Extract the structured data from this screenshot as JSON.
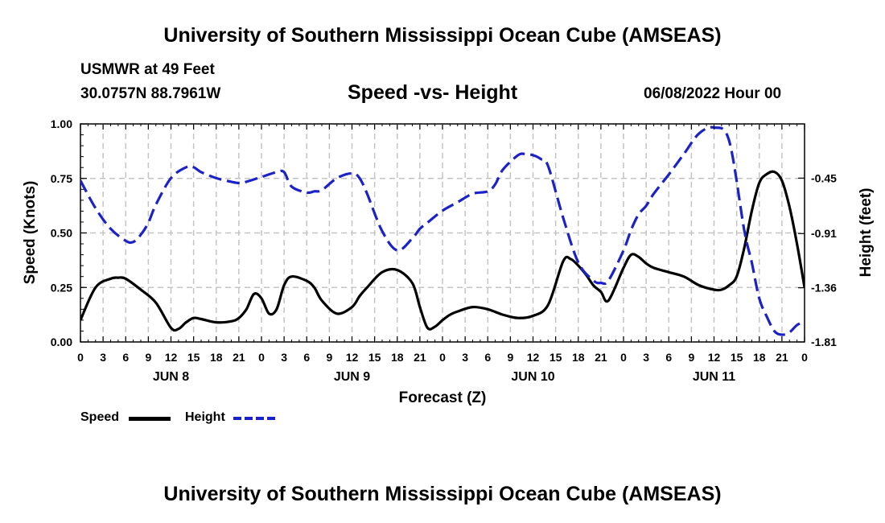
{
  "page": {
    "title": "University of Southern Mississippi Ocean Cube (AMSEAS)",
    "station_line": "USMWR at 49 Feet",
    "coords_line": "30.0757N  88.7961W",
    "chart_subtitle": "Speed -vs- Height",
    "date_line": "06/08/2022 Hour 00",
    "footer_title": "University of Southern Mississippi Ocean Cube (AMSEAS)"
  },
  "legend": {
    "speed_label": "Speed",
    "height_label": "Height"
  },
  "chart_data": {
    "type": "line",
    "title": "Speed -vs- Height",
    "xlabel": "Forecast (Z)",
    "ylabel": "Speed (Knots)",
    "y2label": "Height (feet)",
    "x_range_hours": [
      0,
      96
    ],
    "x_tick_step_hours": 3,
    "x_tick_labels": [
      "0",
      "3",
      "6",
      "9",
      "12",
      "15",
      "18",
      "21",
      "0",
      "3",
      "6",
      "9",
      "12",
      "15",
      "18",
      "21",
      "0",
      "3",
      "6",
      "9",
      "12",
      "15",
      "18",
      "21",
      "0",
      "3",
      "6",
      "9",
      "12",
      "15",
      "18",
      "21",
      "0"
    ],
    "day_labels": [
      {
        "label": "JUN 8",
        "hour": 12
      },
      {
        "label": "JUN 9",
        "hour": 36
      },
      {
        "label": "JUN 10",
        "hour": 60
      },
      {
        "label": "JUN 11",
        "hour": 84
      }
    ],
    "ylim": [
      0,
      1.0
    ],
    "y_ticks": [
      0,
      0.25,
      0.5,
      0.75,
      1.0
    ],
    "y_tick_labels": [
      "0.00",
      "0.25",
      "0.50",
      "0.75",
      "1.00"
    ],
    "y2lim": [
      -1.81,
      0.0
    ],
    "y2_ticks": [
      -1.81,
      -1.36,
      -0.91,
      -0.45
    ],
    "y2_tick_labels": [
      "-1.81",
      "-1.36",
      "-0.91",
      "-0.45"
    ],
    "grid": true,
    "series": [
      {
        "name": "Speed",
        "axis": "left",
        "color": "#000000",
        "dash": "solid",
        "x": [
          0,
          2,
          4,
          5,
          6,
          8,
          10,
          12,
          13,
          14,
          15,
          16,
          18,
          20,
          21,
          22,
          23,
          24,
          25,
          26,
          27,
          28,
          30,
          31,
          32,
          34,
          36,
          37,
          38,
          40,
          42,
          44,
          45,
          46,
          47,
          48,
          49,
          50,
          52,
          54,
          56,
          58,
          60,
          62,
          64,
          65,
          66,
          67,
          68,
          69,
          70,
          72,
          73,
          74,
          75,
          76,
          78,
          80,
          82,
          84,
          85,
          86,
          87,
          88,
          89,
          90,
          91,
          92,
          93,
          94,
          95,
          96
        ],
        "y": [
          0.1,
          0.25,
          0.29,
          0.295,
          0.29,
          0.24,
          0.18,
          0.065,
          0.06,
          0.09,
          0.11,
          0.105,
          0.09,
          0.095,
          0.11,
          0.15,
          0.22,
          0.2,
          0.13,
          0.15,
          0.26,
          0.3,
          0.28,
          0.25,
          0.19,
          0.13,
          0.16,
          0.21,
          0.25,
          0.32,
          0.33,
          0.27,
          0.16,
          0.065,
          0.07,
          0.1,
          0.125,
          0.14,
          0.16,
          0.15,
          0.125,
          0.11,
          0.12,
          0.17,
          0.37,
          0.38,
          0.35,
          0.31,
          0.26,
          0.23,
          0.19,
          0.34,
          0.4,
          0.39,
          0.36,
          0.34,
          0.32,
          0.3,
          0.26,
          0.24,
          0.24,
          0.26,
          0.3,
          0.43,
          0.6,
          0.73,
          0.77,
          0.78,
          0.74,
          0.62,
          0.45,
          0.25
        ]
      },
      {
        "name": "Height",
        "axis": "right",
        "color": "#1a22c8",
        "dash": "dashed",
        "x": [
          0,
          2,
          4,
          6,
          7,
          8,
          9,
          10,
          12,
          14,
          15,
          16,
          18,
          20,
          21,
          22,
          24,
          26,
          27,
          28,
          30,
          31,
          32,
          34,
          36,
          37,
          38,
          40,
          42,
          44,
          45,
          46,
          48,
          50,
          52,
          54,
          55,
          56,
          58,
          59,
          60,
          61,
          62,
          64,
          66,
          68,
          69,
          70,
          72,
          73,
          74,
          75,
          76,
          78,
          80,
          82,
          84,
          86,
          88,
          89,
          90,
          91,
          92,
          93,
          94,
          95,
          96
        ],
        "y": [
          -0.47,
          -0.7,
          -0.87,
          -0.97,
          -0.98,
          -0.92,
          -0.82,
          -0.67,
          -0.45,
          -0.36,
          -0.36,
          -0.4,
          -0.45,
          -0.48,
          -0.49,
          -0.48,
          -0.44,
          -0.4,
          -0.4,
          -0.52,
          -0.57,
          -0.56,
          -0.55,
          -0.45,
          -0.41,
          -0.45,
          -0.58,
          -0.89,
          -1.05,
          -0.95,
          -0.87,
          -0.82,
          -0.72,
          -0.65,
          -0.58,
          -0.56,
          -0.5,
          -0.38,
          -0.26,
          -0.25,
          -0.26,
          -0.29,
          -0.35,
          -0.78,
          -1.15,
          -1.3,
          -1.32,
          -1.3,
          -1.05,
          -0.88,
          -0.75,
          -0.68,
          -0.58,
          -0.42,
          -0.25,
          -0.08,
          -0.03,
          -0.14,
          -0.88,
          -1.15,
          -1.45,
          -1.6,
          -1.72,
          -1.75,
          -1.73,
          -1.67,
          -1.64
        ]
      }
    ]
  }
}
